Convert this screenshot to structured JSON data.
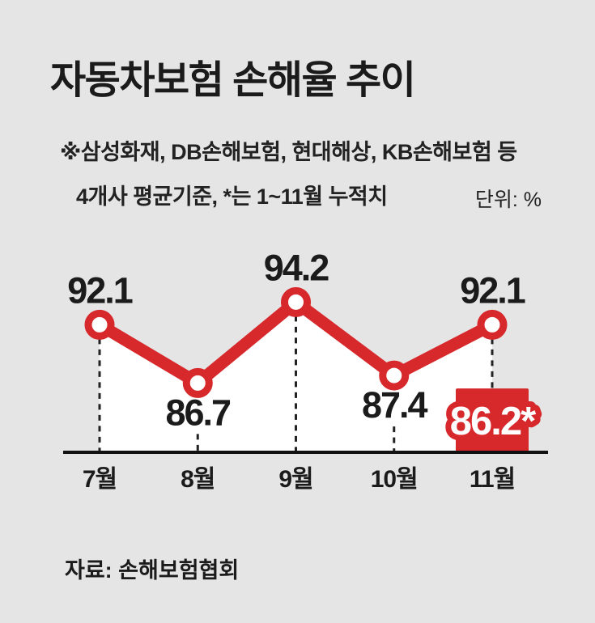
{
  "page": {
    "title": "자동차보험 손해율 추이",
    "note_line1": "※삼성화재, DB손해보험, 현대해상, KB손해보험 등",
    "note_line2": "4개사 평균기준, *는 1~11월 누적치",
    "unit_label": "단위: %",
    "source": "자료: 손해보험협회"
  },
  "colors": {
    "background": "#e5e5e6",
    "accent_red": "#d7282b",
    "text_dark": "#1b1b1b",
    "note_text": "#222222",
    "axis_black": "#111111",
    "guide_dash": "#222222",
    "area_fill": "#ffffff",
    "marker_fill": "#ffffff",
    "cumulative_text": "#ffffff"
  },
  "chart_data": {
    "type": "line",
    "title": "자동차보험 손해율 추이",
    "unit": "%",
    "categories": [
      "7월",
      "8월",
      "9월",
      "10월",
      "11월"
    ],
    "values": [
      92.1,
      86.7,
      94.2,
      87.4,
      92.1
    ],
    "value_labels": [
      "92.1",
      "86.7",
      "94.2",
      "87.4",
      "92.1"
    ],
    "label_positions": [
      "above",
      "below",
      "above",
      "below",
      "above"
    ],
    "cumulative": {
      "label": "86.2*",
      "value": 86.2,
      "month": "11월"
    },
    "ylim": [
      80,
      96
    ],
    "grid": false,
    "legend": false
  }
}
